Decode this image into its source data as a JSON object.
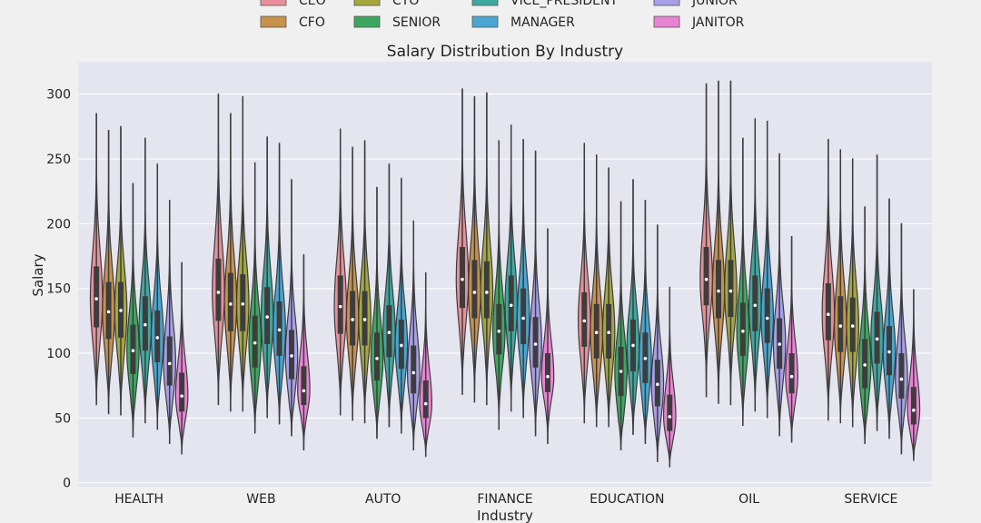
{
  "chart_data": {
    "type": "violin",
    "title": "Salary Distribution By Industry",
    "xlabel": "Industry",
    "ylabel": "Salary",
    "ylim": [
      -3,
      325
    ],
    "yticks": [
      0,
      50,
      100,
      150,
      200,
      250,
      300
    ],
    "grid": true,
    "legend_position": "top",
    "categories": [
      "HEALTH",
      "WEB",
      "AUTO",
      "FINANCE",
      "EDUCATION",
      "OIL",
      "SERVICE"
    ],
    "series": [
      {
        "name": "CEO",
        "color": "#e8909a",
        "min": [
          60,
          60,
          52,
          68,
          46,
          66,
          48
        ],
        "q1": [
          120,
          125,
          115,
          135,
          105,
          137,
          110
        ],
        "median": [
          142,
          147,
          136,
          157,
          125,
          157,
          130
        ],
        "q3": [
          167,
          173,
          160,
          182,
          147,
          182,
          154
        ],
        "max": [
          285,
          300,
          273,
          304,
          262,
          308,
          265
        ]
      },
      {
        "name": "CFO",
        "color": "#c9914a",
        "min": [
          53,
          55,
          48,
          62,
          43,
          61,
          46
        ],
        "q1": [
          111,
          117,
          106,
          127,
          96,
          127,
          101
        ],
        "median": [
          132,
          138,
          126,
          147,
          116,
          148,
          121
        ],
        "q3": [
          155,
          162,
          148,
          172,
          138,
          172,
          144
        ],
        "max": [
          272,
          285,
          259,
          298,
          253,
          310,
          257
        ]
      },
      {
        "name": "CTO",
        "color": "#a5a83c",
        "min": [
          52,
          55,
          46,
          60,
          43,
          60,
          43
        ],
        "q1": [
          112,
          117,
          106,
          127,
          96,
          128,
          101
        ],
        "median": [
          133,
          138,
          126,
          147,
          116,
          148,
          121
        ],
        "q3": [
          155,
          161,
          148,
          171,
          138,
          172,
          143
        ],
        "max": [
          275,
          298,
          264,
          301,
          243,
          310,
          250
        ]
      },
      {
        "name": "SENIOR",
        "color": "#3da762",
        "min": [
          35,
          38,
          34,
          41,
          25,
          44,
          30
        ],
        "q1": [
          84,
          89,
          79,
          99,
          67,
          98,
          73
        ],
        "median": [
          102,
          108,
          96,
          117,
          86,
          117,
          91
        ],
        "q3": [
          122,
          129,
          116,
          138,
          105,
          139,
          111
        ],
        "max": [
          231,
          247,
          228,
          264,
          217,
          266,
          213
        ]
      },
      {
        "name": "VICE_PRESIDENT",
        "color": "#3fa8a0",
        "min": [
          46,
          50,
          43,
          55,
          37,
          55,
          40
        ],
        "q1": [
          102,
          107,
          97,
          117,
          86,
          117,
          92
        ],
        "median": [
          122,
          128,
          116,
          137,
          106,
          137,
          111
        ],
        "q3": [
          144,
          151,
          137,
          160,
          126,
          160,
          132
        ],
        "max": [
          266,
          267,
          246,
          276,
          234,
          281,
          253
        ]
      },
      {
        "name": "MANAGER",
        "color": "#4aa6d1",
        "min": [
          41,
          45,
          38,
          50,
          30,
          50,
          34
        ],
        "q1": [
          93,
          98,
          88,
          107,
          77,
          108,
          83
        ],
        "median": [
          112,
          118,
          106,
          127,
          96,
          127,
          101
        ],
        "q3": [
          133,
          140,
          126,
          150,
          116,
          150,
          121
        ],
        "max": [
          246,
          262,
          235,
          265,
          218,
          279,
          219
        ]
      },
      {
        "name": "JUNIOR",
        "color": "#a89fe6",
        "min": [
          30,
          36,
          25,
          36,
          16,
          36,
          22
        ],
        "q1": [
          75,
          80,
          69,
          89,
          59,
          88,
          65
        ],
        "median": [
          92,
          98,
          85,
          107,
          76,
          107,
          80
        ],
        "q3": [
          113,
          118,
          106,
          128,
          95,
          127,
          100
        ],
        "max": [
          218,
          234,
          202,
          256,
          199,
          254,
          200
        ]
      },
      {
        "name": "JANITOR",
        "color": "#e884d4",
        "min": [
          22,
          25,
          20,
          30,
          12,
          31,
          17
        ],
        "q1": [
          55,
          60,
          50,
          70,
          40,
          69,
          45
        ],
        "median": [
          67,
          71,
          61,
          82,
          51,
          82,
          56
        ],
        "q3": [
          85,
          90,
          79,
          100,
          68,
          100,
          74
        ],
        "max": [
          170,
          176,
          162,
          196,
          151,
          190,
          149
        ]
      }
    ]
  }
}
